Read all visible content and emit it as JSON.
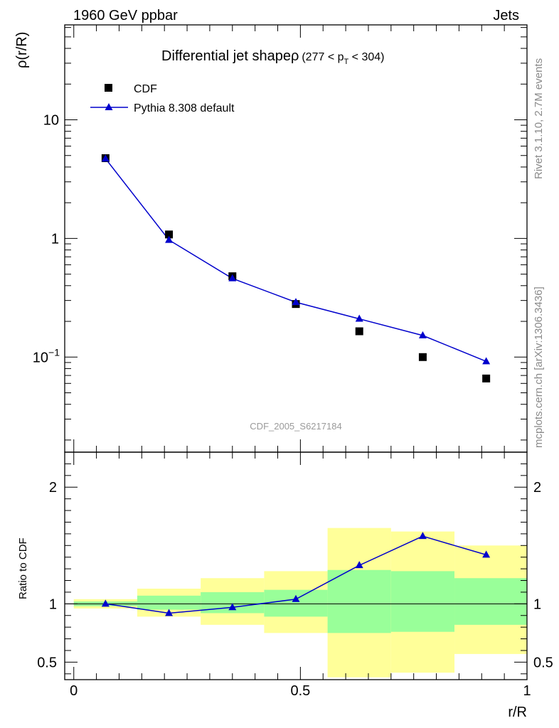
{
  "header": {
    "energy_label": "1960 GeV ppbar",
    "process_label": "Jets"
  },
  "side_labels": {
    "rivet": "Rivet 3.1.10,  2.7M events",
    "mcplots": "mcplots.cern.ch [arXiv:1306.3436]"
  },
  "colors": {
    "mc": "#0000cc",
    "data": "#000000",
    "band_inner": "#99ff99",
    "band_outer": "#ffff99"
  },
  "chart_data": [
    {
      "type": "scatter",
      "title": "Differential jet shapeρ",
      "title_suffix": "(277 < p",
      "title_sub": "T",
      "title_end": " < 304)",
      "watermark": "CDF_2005_S6217184",
      "ylabel": "ρ(r/R)",
      "xlabel": "",
      "xlim": [
        -0.02,
        1.0
      ],
      "ylim": [
        0.0158,
        63.1
      ],
      "yscale": "log",
      "yticks": [
        {
          "value": 10,
          "label": "10"
        },
        {
          "value": 1,
          "label": "1"
        },
        {
          "value": 0.1,
          "label": "10",
          "sup": "−1"
        }
      ],
      "legend": {
        "position": "top-left"
      },
      "series": [
        {
          "name": "CDF",
          "marker": "square",
          "x": [
            0.07,
            0.21,
            0.35,
            0.49,
            0.63,
            0.77,
            0.91
          ],
          "values": [
            4.75,
            1.08,
            0.48,
            0.28,
            0.165,
            0.1,
            0.066
          ]
        },
        {
          "name": "Pythia 8.308 default",
          "marker": "triangle",
          "x": [
            0.07,
            0.21,
            0.35,
            0.49,
            0.63,
            0.77,
            0.91
          ],
          "values": [
            4.7,
            0.97,
            0.46,
            0.29,
            0.21,
            0.152,
            0.092
          ]
        }
      ]
    },
    {
      "type": "line",
      "title": "",
      "xlabel": "r/R",
      "ylabel": "Ratio to CDF",
      "xlim": [
        -0.02,
        1.0
      ],
      "ylim": [
        0.35,
        2.3
      ],
      "xticks": [
        {
          "value": 0,
          "label": "0"
        },
        {
          "value": 0.5,
          "label": "0.5"
        },
        {
          "value": 1,
          "label": "1"
        }
      ],
      "yticks": [
        {
          "value": 0.5,
          "label": "0.5"
        },
        {
          "value": 1,
          "label": "1"
        },
        {
          "value": 2,
          "label": "2"
        }
      ],
      "reference_line": 1,
      "bands": [
        {
          "x0": 0.0,
          "x1": 0.14,
          "inner": [
            0.98,
            1.02
          ],
          "outer": [
            0.96,
            1.04
          ]
        },
        {
          "x0": 0.14,
          "x1": 0.28,
          "inner": [
            0.95,
            1.07
          ],
          "outer": [
            0.89,
            1.13
          ]
        },
        {
          "x0": 0.28,
          "x1": 0.42,
          "inner": [
            0.92,
            1.1
          ],
          "outer": [
            0.82,
            1.22
          ]
        },
        {
          "x0": 0.42,
          "x1": 0.56,
          "inner": [
            0.89,
            1.12
          ],
          "outer": [
            0.75,
            1.28
          ]
        },
        {
          "x0": 0.56,
          "x1": 0.7,
          "inner": [
            0.75,
            1.29
          ],
          "outer": [
            0.37,
            1.65
          ]
        },
        {
          "x0": 0.7,
          "x1": 0.84,
          "inner": [
            0.76,
            1.28
          ],
          "outer": [
            0.41,
            1.62
          ]
        },
        {
          "x0": 0.84,
          "x1": 1.0,
          "inner": [
            0.82,
            1.22
          ],
          "outer": [
            0.57,
            1.5
          ]
        }
      ],
      "series": [
        {
          "name": "Pythia 8.308 default",
          "x": [
            0.07,
            0.21,
            0.35,
            0.49,
            0.63,
            0.77,
            0.91
          ],
          "values": [
            1.0,
            0.92,
            0.97,
            1.04,
            1.33,
            1.58,
            1.42
          ]
        }
      ]
    }
  ]
}
